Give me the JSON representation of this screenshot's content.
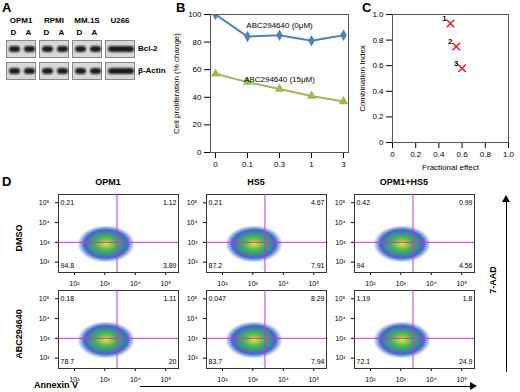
{
  "chart_data": [
    {
      "panel": "B",
      "type": "line",
      "categories": [
        0,
        0.1,
        0.3,
        1,
        3
      ],
      "y_label": "Cell proliferation (% change)",
      "ylim": [
        0,
        100
      ],
      "yticks": [
        0,
        20,
        40,
        60,
        80,
        100
      ],
      "series": [
        {
          "name": "ABC294640 (0μM)",
          "color": "#4f81bd",
          "marker": "diamond",
          "values": [
            100,
            84,
            85,
            81,
            85
          ]
        },
        {
          "name": "ABC294640 (15μM)",
          "color": "#9bbb59",
          "marker": "triangle",
          "values": [
            57,
            51,
            46,
            41,
            37
          ]
        }
      ]
    },
    {
      "panel": "C",
      "type": "scatter",
      "x_label": "Fractional effect",
      "y_label": "Combination Index",
      "x": [
        0.5,
        0.55,
        0.6
      ],
      "values": [
        0.93,
        0.75,
        0.58
      ],
      "point_labels": [
        "1",
        "2",
        "3"
      ],
      "color": "#e02020",
      "marker": "x",
      "xlim": [
        0,
        1
      ],
      "xticks": [
        0,
        0.2,
        0.4,
        0.6,
        0.8,
        {
          "value": 1,
          "label": "1.0"
        }
      ],
      "ylim": [
        0,
        1
      ],
      "yticks": [
        0,
        0.2,
        0.4,
        0.6,
        0.8,
        {
          "value": 1,
          "label": "1.0"
        }
      ]
    }
  ],
  "blot": {
    "panel": "A",
    "groups": [
      {
        "name": "OPM1",
        "lanes": [
          "D",
          "A"
        ]
      },
      {
        "name": "RPMI",
        "lanes": [
          "D",
          "A"
        ]
      },
      {
        "name": "MM.1S",
        "lanes": [
          "D",
          "A"
        ]
      },
      {
        "name": "U266",
        "lanes": []
      }
    ],
    "rows": [
      "Bcl-2",
      "β-Actin"
    ]
  },
  "flow": {
    "panel": "D",
    "type": "scatter",
    "log": true,
    "columns": [
      "OPM1",
      "HS5",
      "OPM1+HS5"
    ],
    "rows": [
      "DMSO",
      "ABC294640"
    ],
    "x_label": "Annexin V",
    "y_label": "7-AAD",
    "xlim": [
      30,
      262144
    ],
    "ylim": [
      30,
      262144
    ],
    "xticks": [
      {
        "value": 100,
        "label": "10²"
      },
      {
        "value": 1000,
        "label": "10³"
      },
      {
        "value": 10000,
        "label": "10⁴"
      },
      {
        "value": 100000,
        "label": "10⁵"
      }
    ],
    "yticks": [
      {
        "value": 100,
        "label": "10²"
      },
      {
        "value": 1000,
        "label": "10³"
      },
      {
        "value": 10000,
        "label": "10⁴"
      },
      {
        "value": 100000,
        "label": "10⁵"
      }
    ],
    "gates": {
      "x": 2500,
      "y": 1000
    },
    "quadrants": [
      [
        {
          "upper_left": 0.21,
          "upper_right": 1.12,
          "lower_left": 94.8,
          "lower_right": 3.89
        },
        {
          "upper_left": 0.21,
          "upper_right": 4.67,
          "lower_left": 87.2,
          "lower_right": 7.91
        },
        {
          "upper_left": 0.42,
          "upper_right": 0.99,
          "lower_left": 94,
          "lower_right": 4.56
        }
      ],
      [
        {
          "upper_left": 0.18,
          "upper_right": 1.11,
          "lower_left": 78.7,
          "lower_right": 20
        },
        {
          "upper_left": 0.047,
          "upper_right": 8.29,
          "lower_left": 83.7,
          "lower_right": 7.94
        },
        {
          "upper_left": 1.19,
          "upper_right": 1.8,
          "lower_left": 72.1,
          "lower_right": 24.9
        }
      ]
    ]
  }
}
